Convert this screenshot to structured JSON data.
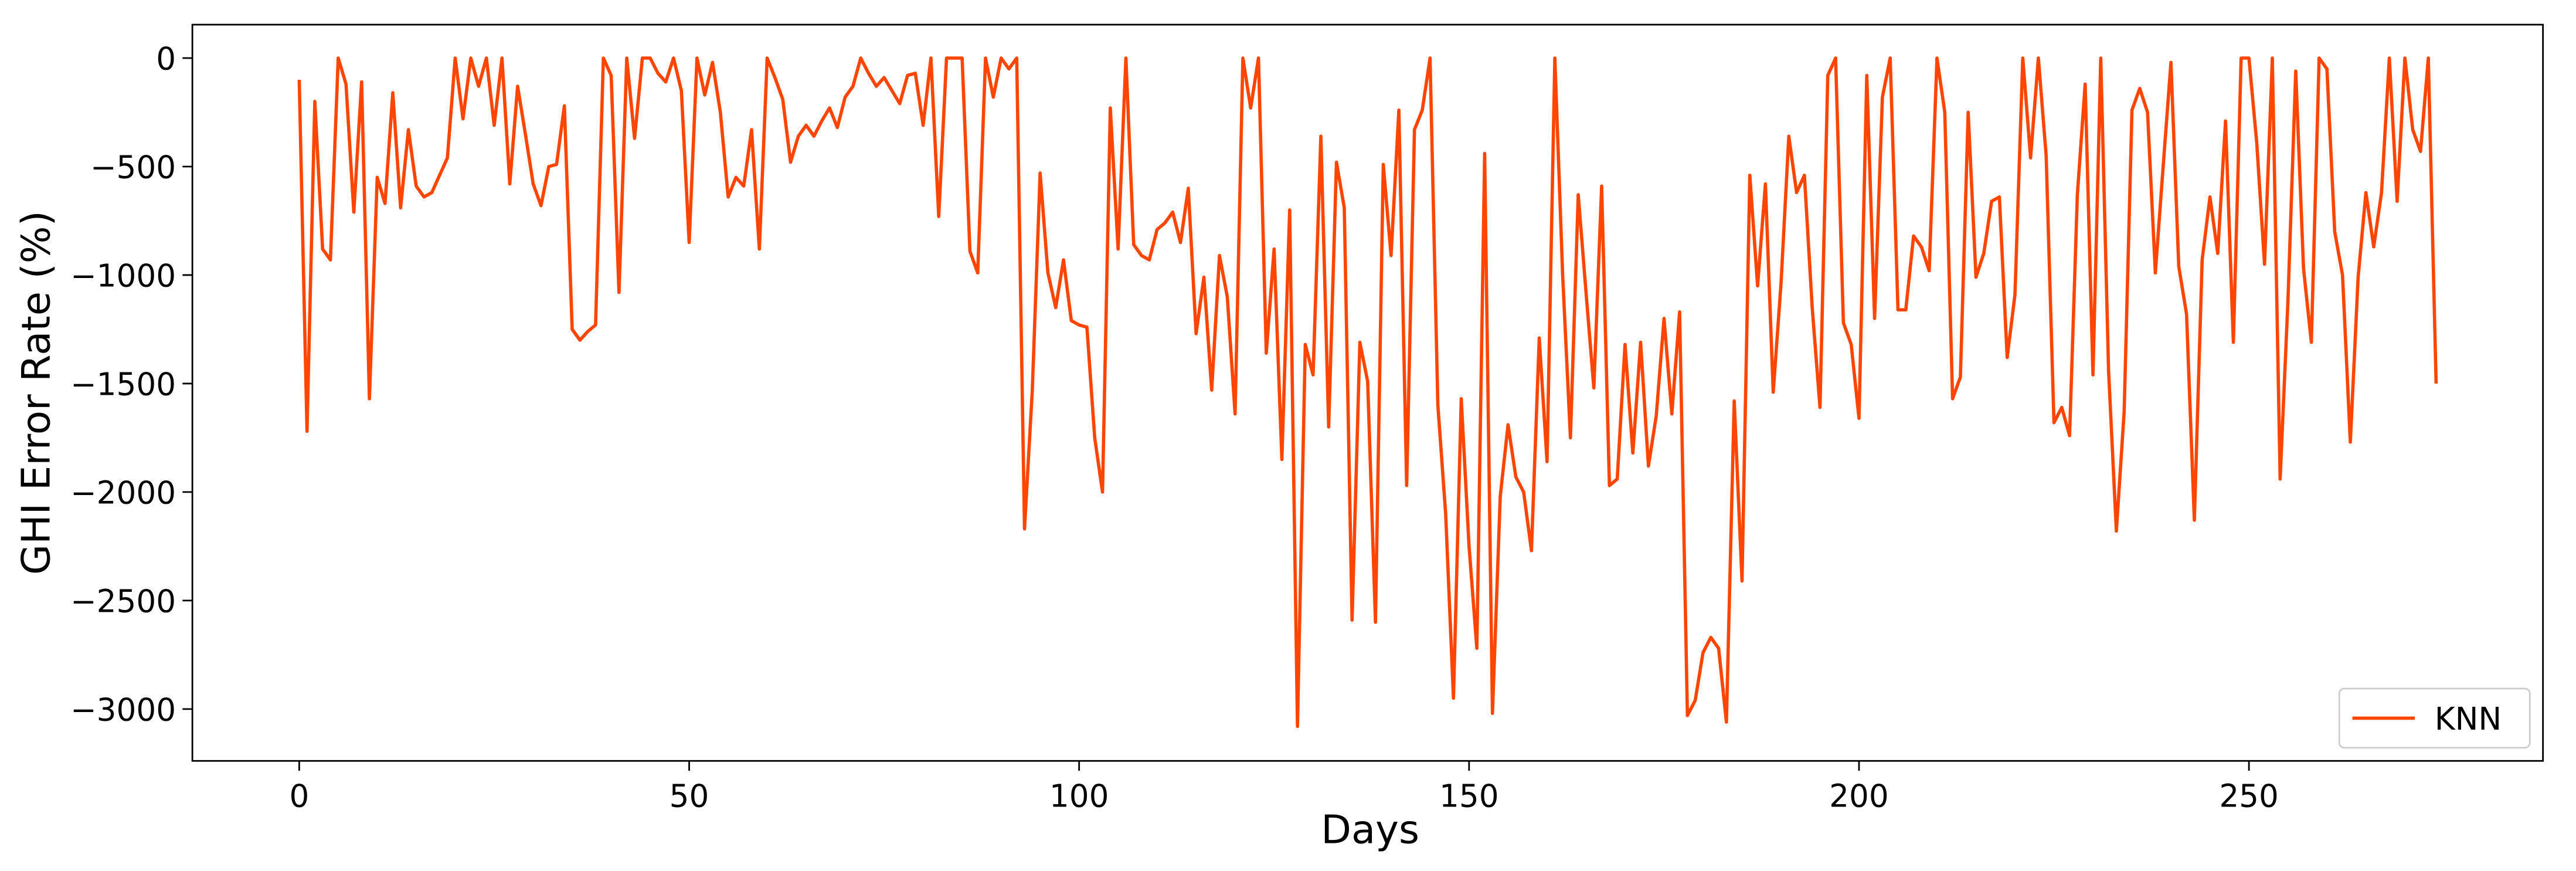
{
  "chart_data": {
    "type": "line",
    "xlabel": "Days",
    "ylabel": "GHI Error Rate (%)",
    "x": [
      0,
      1,
      2,
      3,
      4,
      5,
      6,
      7,
      8,
      9,
      10,
      11,
      12,
      13,
      14,
      15,
      16,
      17,
      18,
      19,
      20,
      21,
      22,
      23,
      24,
      25,
      26,
      27,
      28,
      29,
      30,
      31,
      32,
      33,
      34,
      35,
      36,
      37,
      38,
      39,
      40,
      41,
      42,
      43,
      44,
      45,
      46,
      47,
      48,
      49,
      50,
      51,
      52,
      53,
      54,
      55,
      56,
      57,
      58,
      59,
      60,
      61,
      62,
      63,
      64,
      65,
      66,
      67,
      68,
      69,
      70,
      71,
      72,
      73,
      74,
      75,
      76,
      77,
      78,
      79,
      80,
      81,
      82,
      83,
      84,
      85,
      86,
      87,
      88,
      89,
      90,
      91,
      92,
      93,
      94,
      95,
      96,
      97,
      98,
      99,
      100,
      101,
      102,
      103,
      104,
      105,
      106,
      107,
      108,
      109,
      110,
      111,
      112,
      113,
      114,
      115,
      116,
      117,
      118,
      119,
      120,
      121,
      122,
      123,
      124,
      125,
      126,
      127,
      128,
      129,
      130,
      131,
      132,
      133,
      134,
      135,
      136,
      137,
      138,
      139,
      140,
      141,
      142,
      143,
      144,
      145,
      146,
      147,
      148,
      149,
      150,
      151,
      152,
      153,
      154,
      155,
      156,
      157,
      158,
      159,
      160,
      161,
      162,
      163,
      164,
      165,
      166,
      167,
      168,
      169,
      170,
      171,
      172,
      173,
      174,
      175,
      176,
      177,
      178,
      179,
      180,
      181,
      182,
      183,
      184,
      185,
      186,
      187,
      188,
      189,
      190,
      191,
      192,
      193,
      194,
      195,
      196,
      197,
      198,
      199,
      200,
      201,
      202,
      203,
      204,
      205,
      206,
      207,
      208,
      209,
      210,
      211,
      212,
      213,
      214,
      215,
      216,
      217,
      218,
      219,
      220,
      221,
      222,
      223,
      224,
      225,
      226,
      227,
      228,
      229,
      230,
      231,
      232,
      233,
      234,
      235,
      236,
      237,
      238,
      239,
      240,
      241,
      242,
      243,
      244,
      245,
      246,
      247,
      248,
      249,
      250,
      251,
      252,
      253,
      254,
      255,
      256,
      257,
      258,
      259,
      260,
      261,
      262,
      263,
      264,
      265,
      266,
      267,
      268,
      269,
      270,
      271,
      272,
      273,
      274
    ],
    "series": [
      {
        "name": "KNN",
        "color": "#ff4500",
        "values": [
          -100,
          -1720,
          -200,
          -880,
          -930,
          0,
          -120,
          -710,
          -110,
          -1570,
          -550,
          -670,
          -160,
          -690,
          -330,
          -590,
          -640,
          -620,
          -540,
          -460,
          0,
          -280,
          0,
          -130,
          0,
          -310,
          0,
          -580,
          -130,
          -350,
          -580,
          -680,
          -500,
          -490,
          -220,
          -1250,
          -1300,
          -1260,
          -1230,
          0,
          -80,
          -1080,
          0,
          -370,
          0,
          0,
          -70,
          -110,
          0,
          -150,
          -850,
          0,
          -170,
          -20,
          -250,
          -640,
          -550,
          -590,
          -330,
          -880,
          0,
          -90,
          -190,
          -480,
          -360,
          -310,
          -360,
          -290,
          -230,
          -320,
          -180,
          -130,
          0,
          -70,
          -130,
          -90,
          -150,
          -210,
          -80,
          -70,
          -310,
          0,
          -730,
          0,
          0,
          0,
          -890,
          -990,
          0,
          -180,
          0,
          -50,
          0,
          -2170,
          -1530,
          -530,
          -990,
          -1150,
          -930,
          -1210,
          -1230,
          -1240,
          -1750,
          -2000,
          -230,
          -880,
          0,
          -860,
          -910,
          -930,
          -790,
          -760,
          -710,
          -850,
          -600,
          -1270,
          -1010,
          -1530,
          -910,
          -1100,
          -1640,
          0,
          -230,
          0,
          -1360,
          -880,
          -1850,
          -700,
          -3080,
          -1320,
          -1460,
          -360,
          -1700,
          -480,
          -690,
          -2590,
          -1310,
          -1490,
          -2600,
          -490,
          -910,
          -240,
          -1970,
          -330,
          -240,
          0,
          -1600,
          -2100,
          -2950,
          -1570,
          -2250,
          -2720,
          -440,
          -3020,
          -2020,
          -1690,
          -1930,
          -2000,
          -2270,
          -1290,
          -1860,
          0,
          -1000,
          -1750,
          -630,
          -1080,
          -1520,
          -590,
          -1970,
          -1940,
          -1320,
          -1820,
          -1310,
          -1880,
          -1650,
          -1200,
          -1640,
          -1170,
          -3030,
          -2960,
          -2740,
          -2670,
          -2720,
          -3060,
          -1580,
          -2410,
          -540,
          -1050,
          -580,
          -1540,
          -1040,
          -360,
          -620,
          -540,
          -1150,
          -1610,
          -80,
          0,
          -1220,
          -1320,
          -1660,
          -80,
          -1200,
          -180,
          0,
          -1160,
          -1160,
          -820,
          -870,
          -980,
          0,
          -250,
          -1570,
          -1470,
          -250,
          -1010,
          -900,
          -660,
          -640,
          -1380,
          -1090,
          0,
          -460,
          0,
          -450,
          -1680,
          -1610,
          -1740,
          -630,
          -120,
          -1460,
          0,
          -1440,
          -2180,
          -1630,
          -240,
          -140,
          -250,
          -990,
          -500,
          -20,
          -960,
          -1180,
          -2130,
          -930,
          -640,
          -900,
          -290,
          -1310,
          0,
          0,
          -390,
          -950,
          0,
          -1940,
          -1120,
          -60,
          -970,
          -1310,
          0,
          -50,
          -800,
          -1000,
          -1770,
          -1010,
          -620,
          -870,
          -620,
          0,
          -660,
          0,
          -330,
          -430,
          0,
          -1500
        ]
      }
    ],
    "xlim": [
      -13.7,
      287.7
    ],
    "ylim": [
      -3239,
      154
    ],
    "xticks": [
      0,
      50,
      100,
      150,
      200,
      250
    ],
    "yticks": [
      {
        "value": -3000,
        "label": "−3000"
      },
      {
        "value": -2500,
        "label": "−2500"
      },
      {
        "value": -2000,
        "label": "−2000"
      },
      {
        "value": -1500,
        "label": "−1500"
      },
      {
        "value": -1000,
        "label": "−1000"
      },
      {
        "value": -500,
        "label": "−500"
      },
      0
    ],
    "grid": false,
    "legend": "lower right"
  }
}
